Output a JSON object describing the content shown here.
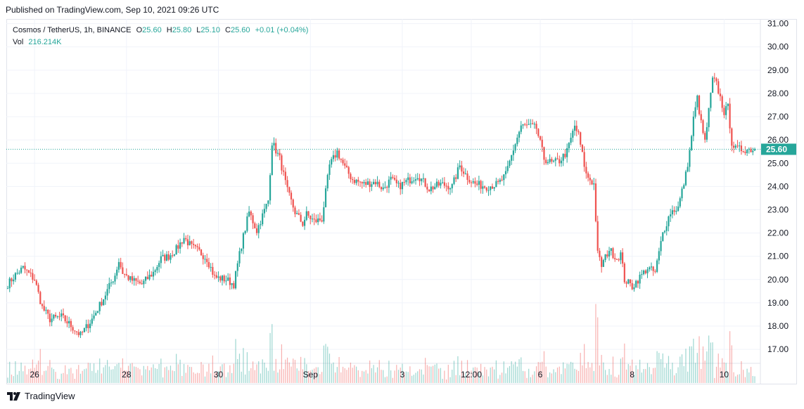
{
  "header": {
    "published": "Published on TradingView.com, Sep 10, 2021 09:26 UTC"
  },
  "legend": {
    "symbol": "Cosmos / TetherUS, 1h, BINANCE",
    "o_label": "O",
    "o_value": "25.60",
    "h_label": "H",
    "h_value": "25.80",
    "l_label": "L",
    "l_value": "25.10",
    "c_label": "C",
    "c_value": "25.60",
    "change": "+0.01 (+0.04%)",
    "vol_label": "Vol",
    "vol_value": "216.214K"
  },
  "footer": {
    "logo_icon": "tradingview-logo-icon",
    "brand": "TradingView"
  },
  "colors": {
    "up": "#26a69a",
    "down": "#ef5350",
    "price_tag": "#26a69a",
    "grid": "#f0f3fa",
    "axis_text": "#131722"
  },
  "chart_data": {
    "type": "candlestick",
    "title": "Cosmos / TetherUS, 1h, BINANCE",
    "ylim": [
      16.4,
      31.2
    ],
    "y_ticks": [
      "31.00",
      "30.00",
      "29.00",
      "28.00",
      "27.00",
      "26.00",
      "25.00",
      "24.00",
      "23.00",
      "22.00",
      "21.00",
      "20.00",
      "19.00",
      "18.00",
      "17.00"
    ],
    "x_ticks": [
      "26",
      "28",
      "30",
      "Sep",
      "3",
      "12:00",
      "6",
      "8",
      "10"
    ],
    "x_tick_hours": [
      14,
      62,
      110,
      158,
      206,
      242,
      278,
      326,
      374
    ],
    "last_price_label": "25.60",
    "last_price": 25.6,
    "total_hours": 390,
    "grid": true,
    "close_anchors": [
      [
        0,
        19.8
      ],
      [
        4,
        20.2
      ],
      [
        8,
        20.5
      ],
      [
        14,
        20.0
      ],
      [
        18,
        18.8
      ],
      [
        22,
        18.3
      ],
      [
        28,
        18.4
      ],
      [
        32,
        18.1
      ],
      [
        38,
        17.6
      ],
      [
        44,
        18.3
      ],
      [
        50,
        19.2
      ],
      [
        56,
        20.2
      ],
      [
        58,
        20.8
      ],
      [
        60,
        20.3
      ],
      [
        64,
        20.0
      ],
      [
        70,
        19.8
      ],
      [
        76,
        20.3
      ],
      [
        80,
        20.9
      ],
      [
        84,
        21.0
      ],
      [
        88,
        21.3
      ],
      [
        92,
        21.8
      ],
      [
        96,
        21.4
      ],
      [
        100,
        21.2
      ],
      [
        104,
        20.9
      ],
      [
        108,
        20.1
      ],
      [
        114,
        20.0
      ],
      [
        118,
        19.8
      ],
      [
        122,
        21.5
      ],
      [
        126,
        22.9
      ],
      [
        130,
        22.1
      ],
      [
        136,
        23.4
      ],
      [
        138,
        25.9
      ],
      [
        142,
        25.2
      ],
      [
        146,
        23.8
      ],
      [
        150,
        22.9
      ],
      [
        154,
        22.4
      ],
      [
        156,
        22.8
      ],
      [
        160,
        22.5
      ],
      [
        164,
        22.6
      ],
      [
        168,
        24.9
      ],
      [
        172,
        25.5
      ],
      [
        176,
        24.8
      ],
      [
        180,
        24.3
      ],
      [
        186,
        24.1
      ],
      [
        192,
        24.2
      ],
      [
        196,
        23.9
      ],
      [
        200,
        24.3
      ],
      [
        204,
        24.0
      ],
      [
        208,
        24.2
      ],
      [
        214,
        24.5
      ],
      [
        220,
        23.9
      ],
      [
        226,
        24.1
      ],
      [
        232,
        24.0
      ],
      [
        236,
        24.9
      ],
      [
        240,
        24.4
      ],
      [
        244,
        24.1
      ],
      [
        250,
        24.0
      ],
      [
        256,
        24.1
      ],
      [
        260,
        24.5
      ],
      [
        264,
        25.6
      ],
      [
        268,
        26.6
      ],
      [
        272,
        26.6
      ],
      [
        276,
        26.5
      ],
      [
        280,
        25.2
      ],
      [
        284,
        25.0
      ],
      [
        288,
        25.1
      ],
      [
        292,
        25.5
      ],
      [
        296,
        26.6
      ],
      [
        298,
        26.2
      ],
      [
        302,
        24.5
      ],
      [
        306,
        24.1
      ],
      [
        308,
        21.1
      ],
      [
        310,
        20.6
      ],
      [
        314,
        21.3
      ],
      [
        318,
        20.9
      ],
      [
        320,
        21.1
      ],
      [
        322,
        20.0
      ],
      [
        326,
        19.7
      ],
      [
        330,
        20.1
      ],
      [
        334,
        20.5
      ],
      [
        338,
        20.3
      ],
      [
        342,
        22.0
      ],
      [
        346,
        22.9
      ],
      [
        350,
        23.1
      ],
      [
        354,
        24.5
      ],
      [
        356,
        25.5
      ],
      [
        358,
        26.9
      ],
      [
        360,
        27.8
      ],
      [
        362,
        26.7
      ],
      [
        364,
        25.9
      ],
      [
        368,
        28.6
      ],
      [
        370,
        28.4
      ],
      [
        374,
        27.2
      ],
      [
        376,
        27.4
      ],
      [
        378,
        25.9
      ],
      [
        380,
        25.6
      ]
    ],
    "volume_note": "volume bars shown at bottom; spikes near 30, Sep 1, Sep 7-8, Sep 9-10"
  }
}
